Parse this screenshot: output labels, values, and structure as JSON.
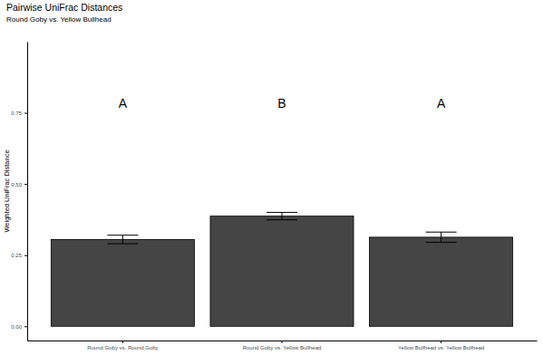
{
  "chart_data": {
    "type": "bar",
    "title": "Pairwise UniFrac Distances",
    "subtitle": "Round Goby vs. Yellow Bullhead",
    "y_label": "Weighted UniFrac Distance",
    "categories": [
      "Round Goby vs. Round Goby",
      "Round Goby vs. Yellow Bullhead",
      "Yellow Bullhead vs. Yellow Bullhead"
    ],
    "values": [
      0.305,
      0.387,
      0.313
    ],
    "errors": [
      0.015,
      0.013,
      0.018
    ],
    "color": "#454545",
    "ylim": [
      -0.05,
      1.0
    ],
    "yticks": [
      {
        "value": 0,
        "label": "0.00"
      },
      {
        "value": 0.25,
        "label": "0.25"
      },
      {
        "value": 0.5,
        "label": "0.50"
      },
      {
        "value": 0.75,
        "label": "0.75"
      }
    ],
    "grid": false,
    "annotations": [
      {
        "label": "A",
        "category": 0,
        "y": 0.78
      },
      {
        "label": "B",
        "category": 1,
        "y": 0.78
      },
      {
        "label": "A",
        "category": 2,
        "y": 0.78
      }
    ]
  }
}
